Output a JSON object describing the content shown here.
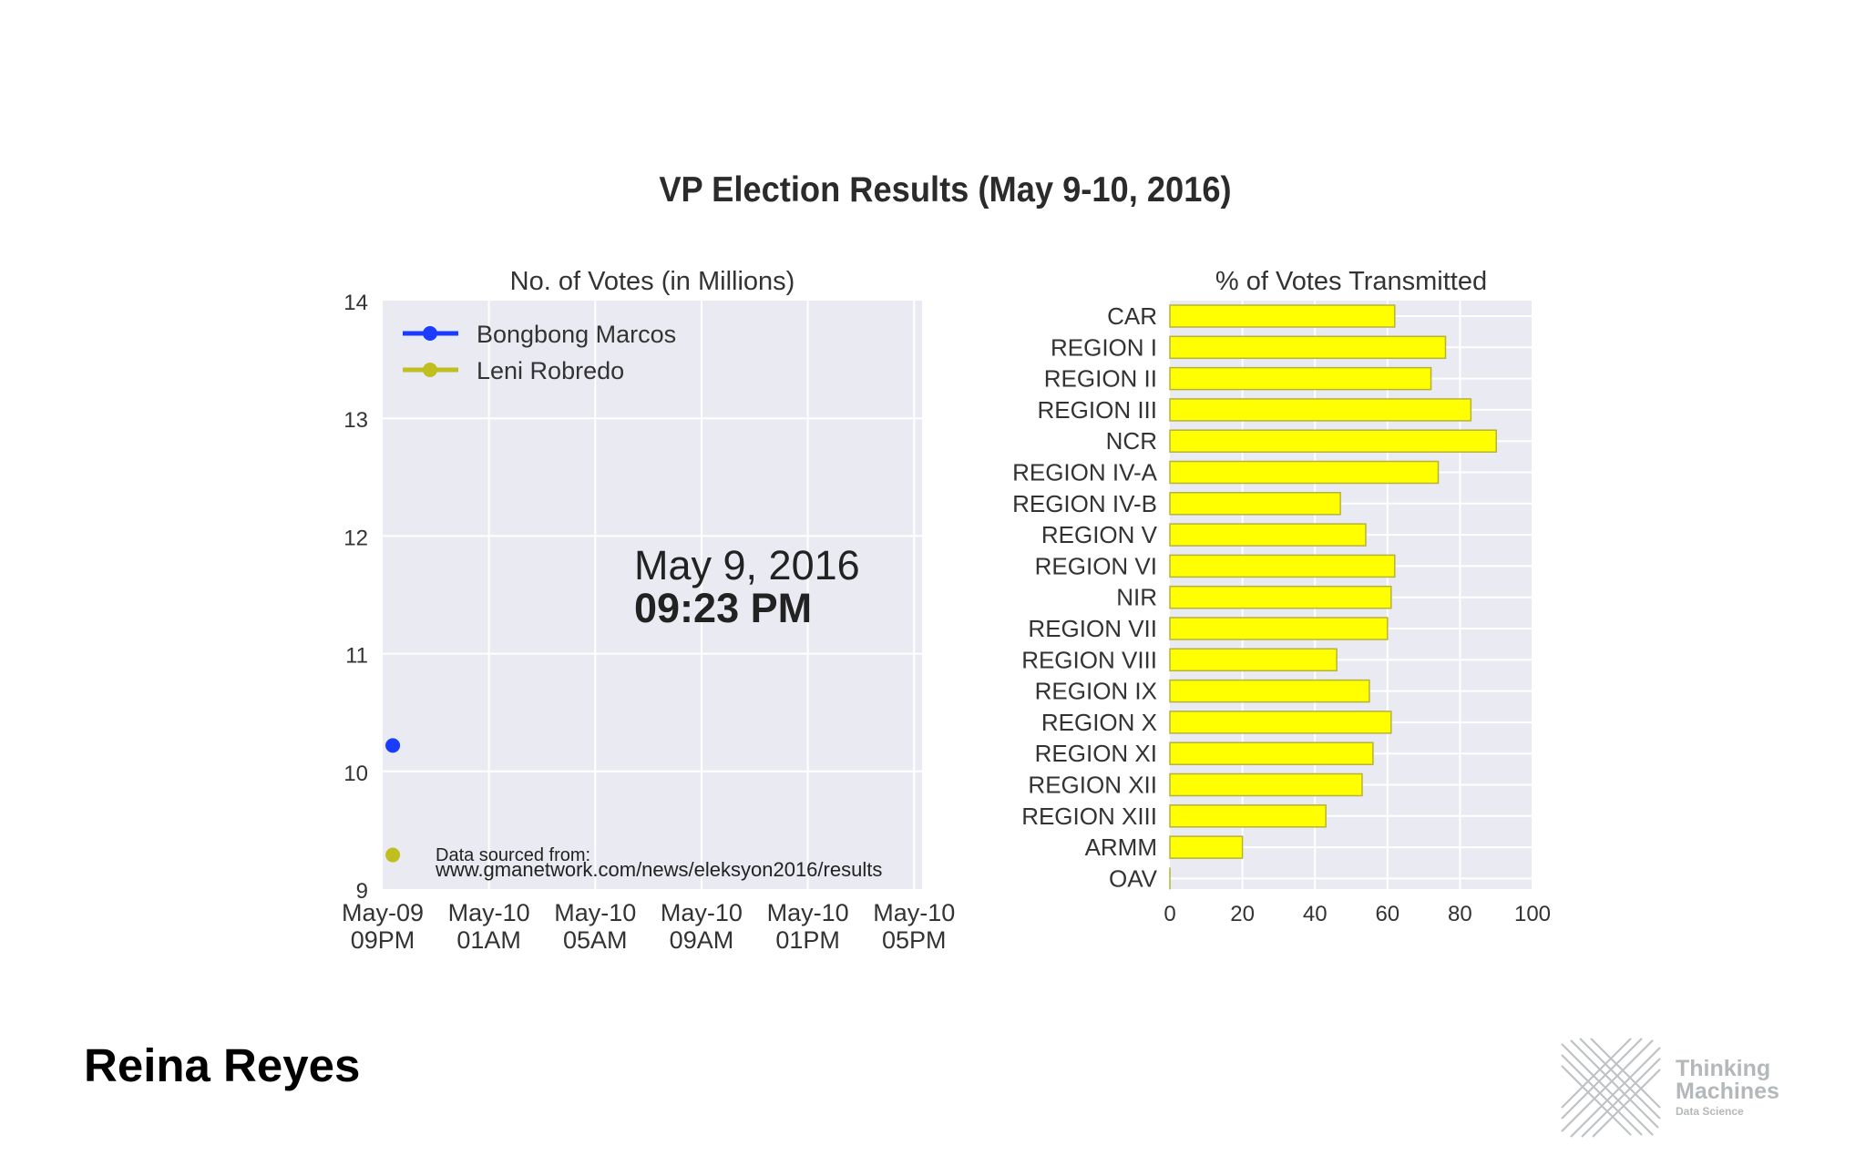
{
  "slide": {
    "title": "VP Election Results (May 9-10, 2016)",
    "author": "Reina Reyes"
  },
  "logo": {
    "line1": "Thinking",
    "line2": "Machines",
    "line3": "Data Science"
  },
  "chart_data": [
    {
      "type": "line",
      "title": "No. of Votes (in Millions)",
      "xlabel": "",
      "ylabel": "",
      "ylim": [
        9,
        14
      ],
      "yticks": [
        "9",
        "10",
        "11",
        "12",
        "13",
        "14"
      ],
      "x_tick_labels": [
        [
          "May-09",
          "09PM"
        ],
        [
          "May-10",
          "01AM"
        ],
        [
          "May-10",
          "05AM"
        ],
        [
          "May-10",
          "09AM"
        ],
        [
          "May-10",
          "01PM"
        ],
        [
          "May-10",
          "05PM"
        ]
      ],
      "x_hours_range": [
        0,
        20.3
      ],
      "grid": true,
      "legend_position": "top-left",
      "series": [
        {
          "name": "Bongbong Marcos",
          "color": "#1a3cff",
          "hours": [
            0.38
          ],
          "values": [
            10.22
          ]
        },
        {
          "name": "Leni Robredo",
          "color": "#bfbf1f",
          "hours": [
            0.38
          ],
          "values": [
            9.29
          ]
        }
      ],
      "annotation": {
        "date": "May  9, 2016",
        "time": "09:23 PM"
      },
      "source_label": "Data sourced from:",
      "source_url": "www.gmanetwork.com/news/eleksyon2016/results"
    },
    {
      "type": "bar",
      "orientation": "horizontal",
      "title": "% of Votes Transmitted",
      "xlim": [
        0,
        100
      ],
      "xticks": [
        "0",
        "20",
        "40",
        "60",
        "80",
        "100"
      ],
      "bar_color": "#ffff00",
      "grid": true,
      "categories": [
        "CAR",
        "REGION I",
        "REGION II",
        "REGION III",
        "NCR",
        "REGION IV-A",
        "REGION IV-B",
        "REGION V",
        "REGION VI",
        "NIR",
        "REGION VII",
        "REGION VIII",
        "REGION IX",
        "REGION X",
        "REGION XI",
        "REGION XII",
        "REGION XIII",
        "ARMM",
        "OAV"
      ],
      "values": [
        62,
        76,
        72,
        83,
        90,
        74,
        47,
        54,
        62,
        61,
        60,
        46,
        55,
        61,
        56,
        53,
        43,
        20,
        0
      ]
    }
  ]
}
